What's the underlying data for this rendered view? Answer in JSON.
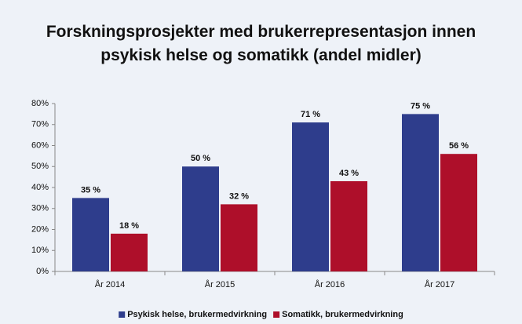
{
  "chart_data": {
    "type": "bar",
    "title": "Forskningsprosjekter med brukerrepresentasjon innen psykisk helse og somatikk (andel midler)",
    "categories": [
      "År 2014",
      "År 2015",
      "År 2016",
      "År 2017"
    ],
    "series": [
      {
        "name": "Psykisk helse, brukermedvirkning",
        "color": "#2e3d8c",
        "values": [
          35,
          50,
          71,
          75
        ],
        "value_labels": [
          "35 %",
          "50 %",
          "71 %",
          "75 %"
        ]
      },
      {
        "name": "Somatikk, brukermedvirkning",
        "color": "#ae0f2a",
        "values": [
          18,
          32,
          43,
          56
        ],
        "value_labels": [
          "18 %",
          "32 %",
          "43 %",
          "56 %"
        ]
      }
    ],
    "ylim": [
      0,
      80
    ],
    "yticks": [
      {
        "value": 0,
        "label": "0%"
      },
      {
        "value": 10,
        "label": "10%"
      },
      {
        "value": 20,
        "label": "20%"
      },
      {
        "value": 30,
        "label": "30%"
      },
      {
        "value": 40,
        "label": "40%"
      },
      {
        "value": 50,
        "label": "50%"
      },
      {
        "value": 60,
        "label": "60%"
      },
      {
        "value": 70,
        "label": "70%"
      },
      {
        "value": 80,
        "label": "80%"
      }
    ],
    "legend": "bottom"
  }
}
